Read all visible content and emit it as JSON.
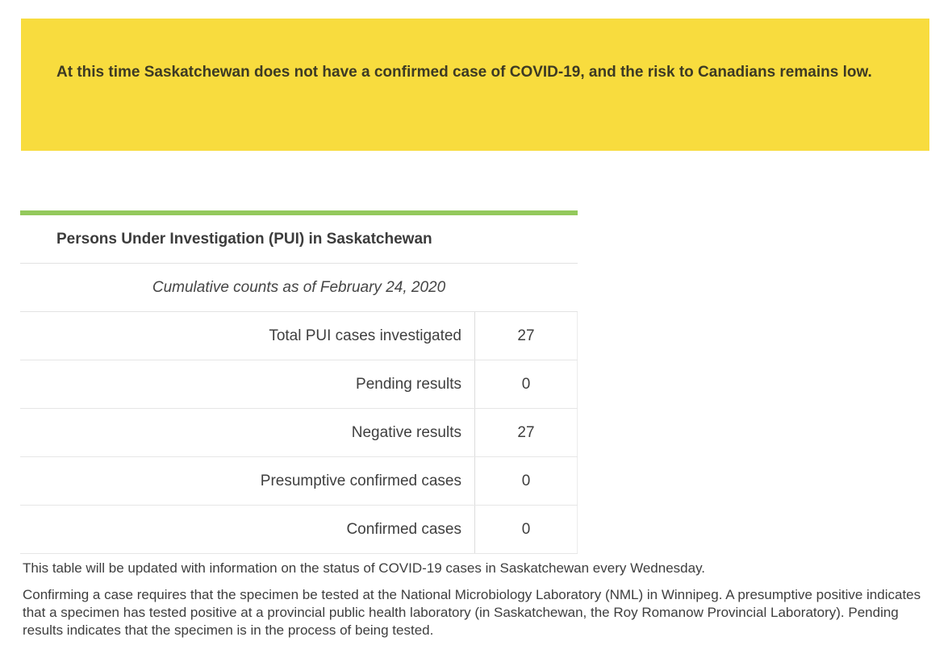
{
  "banner": {
    "text": "At this time Saskatchewan does not have a confirmed case of COVID-19, and the risk to Canadians remains low."
  },
  "table": {
    "title": "Persons Under Investigation (PUI) in Saskatchewan",
    "subtitle": "Cumulative counts as of February 24, 2020",
    "rows": [
      {
        "label": "Total PUI cases investigated",
        "value": "27"
      },
      {
        "label": "Pending results",
        "value": "0"
      },
      {
        "label": "Negative results",
        "value": "27"
      },
      {
        "label": "Presumptive confirmed cases",
        "value": "0"
      },
      {
        "label": "Confirmed cases",
        "value": "0"
      }
    ]
  },
  "notes": [
    "This table will be updated with information on the status of COVID-19 cases in Saskatchewan every Wednesday.",
    "Confirming a case requires that the specimen be tested at the National Microbiology Laboratory (NML) in Winnipeg. A presumptive positive indicates that a specimen has tested positive at a provincial public health laboratory (in Saskatchewan, the Roy Romanow Provincial Laboratory). Pending results indicates that the specimen is in the process of being tested."
  ],
  "colors": {
    "banner_background": "#f8dc3e",
    "banner_text": "#3d3a24",
    "table_accent_green": "#94c95c",
    "body_text": "#3e3e3e",
    "divider": "#e2e2e2"
  }
}
